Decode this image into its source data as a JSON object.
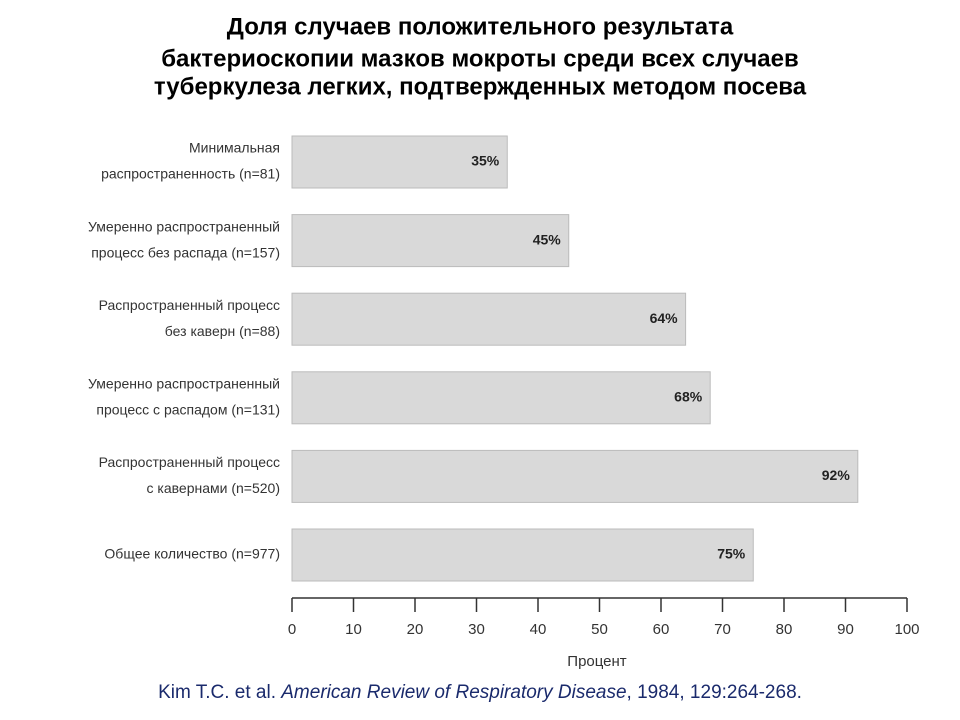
{
  "chart_data": {
    "type": "bar",
    "orientation": "horizontal",
    "title": [
      "Доля случаев положительного результата",
      "бактериоскопии мазков мокроты среди всех случаев",
      "туберкулеза легких, подтвержденных методом посева"
    ],
    "categories": [
      [
        "Минимальная",
        "распространенность (n=81)"
      ],
      [
        "Умеренно распространенный",
        "процесс без распада (n=157)"
      ],
      [
        "Распространенный процесс",
        "без каверн (n=88)"
      ],
      [
        "Умеренно распространенный",
        "процесс с распадом (n=131)"
      ],
      [
        "Распространенный процесс",
        "с кавернами (n=520)"
      ],
      [
        "Общее количество (n=977)"
      ]
    ],
    "values": [
      35,
      45,
      64,
      68,
      92,
      75
    ],
    "value_labels": [
      "35%",
      "45%",
      "64%",
      "68%",
      "92%",
      "75%"
    ],
    "color": "#d9d9d9",
    "xlim": [
      0,
      100
    ],
    "xticks": [
      0,
      10,
      20,
      30,
      40,
      50,
      60,
      70,
      80,
      90,
      100
    ],
    "xlabel": "Процент",
    "source": [
      "Kim T.C. et al. ",
      "American Review of Respiratory Disease",
      ", 1984, 129:264-268."
    ]
  }
}
